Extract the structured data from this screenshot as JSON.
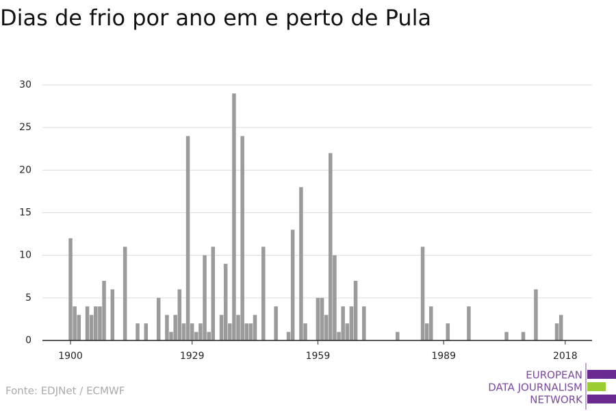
{
  "chart_data": {
    "type": "bar",
    "title": "Dias de frio por ano em e perto de Pula",
    "source": "Fonte: EDJNet / ECMWF",
    "logo": [
      "EUROPEAN",
      "DATA JOURNALISM",
      "NETWORK"
    ],
    "color": "#9b9b9b",
    "x": [
      1900,
      1901,
      1902,
      1904,
      1905,
      1906,
      1907,
      1908,
      1910,
      1913,
      1916,
      1918,
      1921,
      1923,
      1924,
      1925,
      1926,
      1927,
      1928,
      1929,
      1930,
      1931,
      1932,
      1933,
      1934,
      1936,
      1937,
      1938,
      1939,
      1940,
      1941,
      1942,
      1943,
      1944,
      1946,
      1949,
      1952,
      1953,
      1955,
      1956,
      1959,
      1960,
      1961,
      1962,
      1963,
      1964,
      1965,
      1966,
      1967,
      1968,
      1970,
      1978,
      1984,
      1985,
      1986,
      1990,
      1995,
      2004,
      2008,
      2011,
      2016,
      2017
    ],
    "values": [
      12,
      4,
      3,
      4,
      3,
      4,
      4,
      7,
      6,
      11,
      2,
      2,
      5,
      3,
      1,
      3,
      6,
      2,
      24,
      2,
      1,
      2,
      10,
      1,
      11,
      3,
      9,
      2,
      29,
      3,
      24,
      2,
      2,
      3,
      11,
      4,
      1,
      13,
      18,
      2,
      5,
      5,
      3,
      22,
      10,
      1,
      4,
      2,
      4,
      7,
      4,
      1,
      11,
      2,
      4,
      2,
      4,
      1,
      1,
      6,
      2,
      3
    ],
    "xlim": [
      1893.3,
      2024.4
    ],
    "xticks": [
      1900,
      1929,
      1959,
      1989,
      2018
    ],
    "ylim": [
      0,
      30
    ],
    "yticks": [
      0,
      5,
      10,
      15,
      20,
      25,
      30
    ],
    "grid": true
  }
}
